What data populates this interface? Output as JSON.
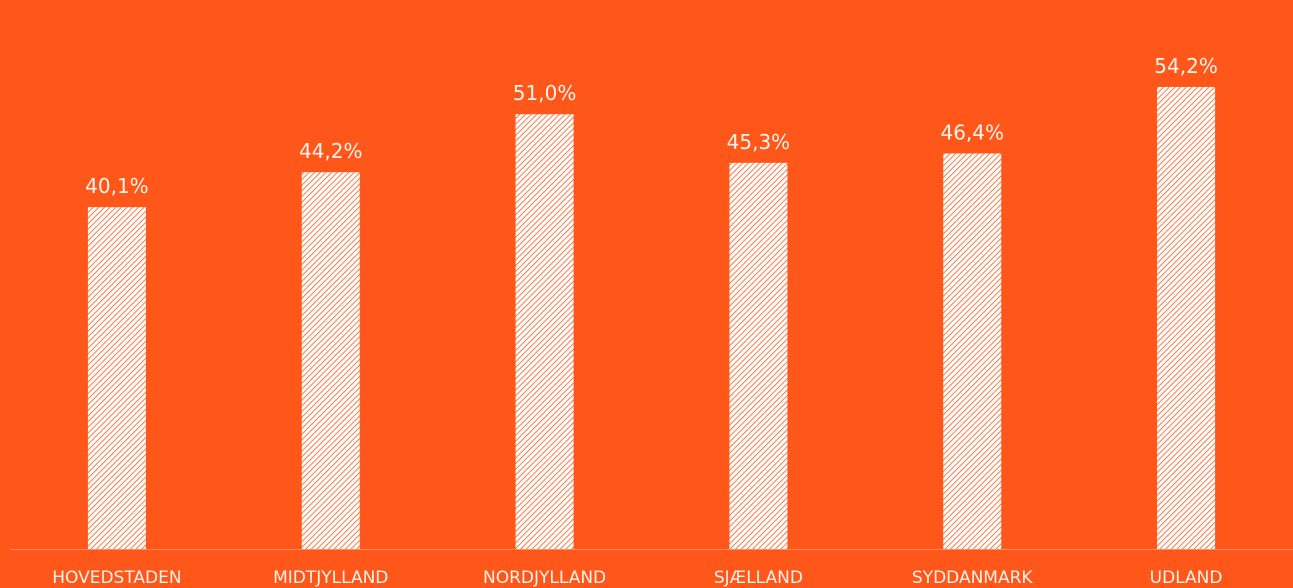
{
  "chart_data": {
    "type": "bar",
    "categories": [
      "HOVEDSTADEN",
      "MIDTJYLLAND",
      "NORDJYLLAND",
      "SJÆLLAND",
      "SYDDANMARK",
      "UDLAND"
    ],
    "values": [
      40.1,
      44.2,
      51.0,
      45.3,
      46.4,
      54.2
    ],
    "value_labels": [
      "40,1%",
      "44,2%",
      "51,0%",
      "45,3%",
      "46,4%",
      "54,2%"
    ],
    "color": "#ffffff",
    "ylim": [
      0,
      64.4
    ]
  }
}
